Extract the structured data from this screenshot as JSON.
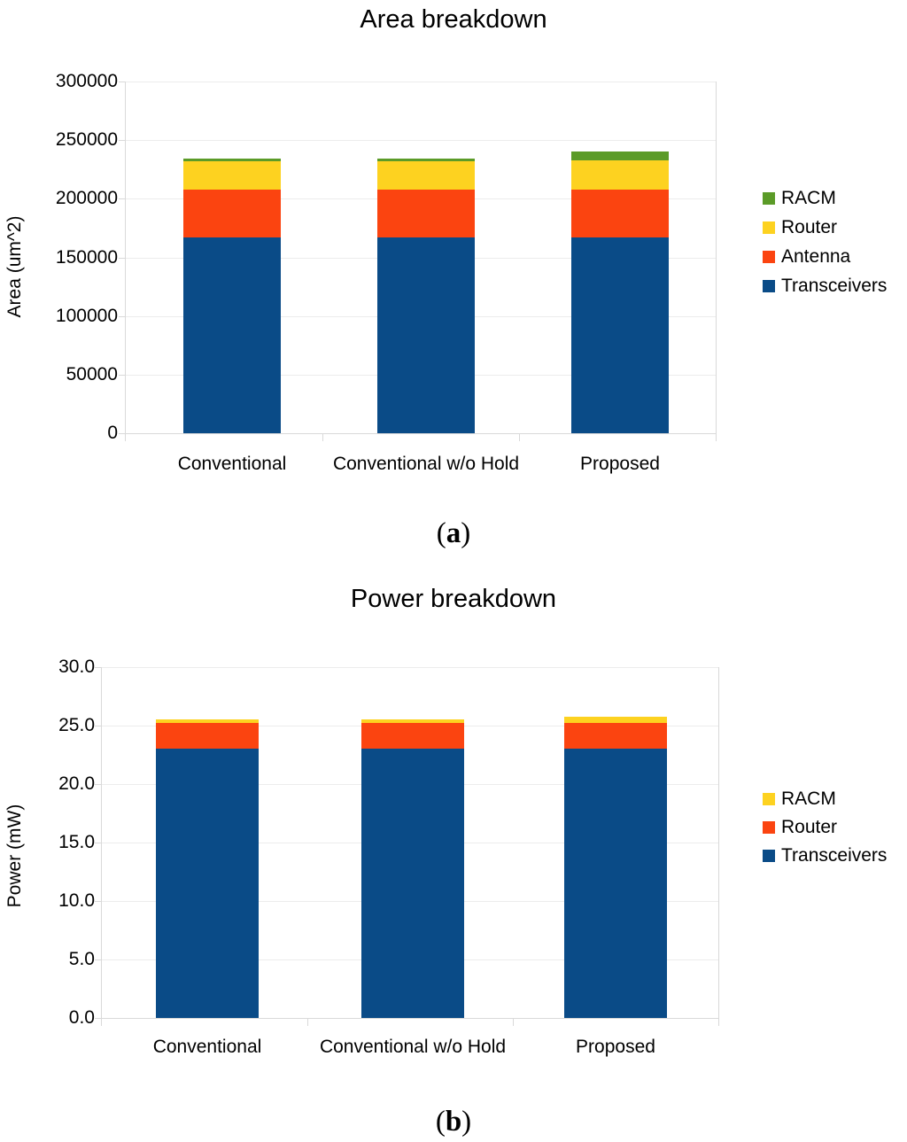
{
  "figure": {
    "captions": [
      {
        "open": "(",
        "letter": "a",
        "close": ")"
      },
      {
        "open": "(",
        "letter": "b",
        "close": ")"
      }
    ]
  },
  "chart_data": [
    {
      "type": "bar",
      "stacked": true,
      "title": "Area breakdown",
      "ylabel": "Area (um^2)",
      "xlabel": "",
      "categories": [
        "Conventional",
        "Conventional w/o Hold",
        "Proposed"
      ],
      "series": [
        {
          "name": "Transceivers",
          "color": "#0A4B87",
          "values": [
            167000,
            167000,
            167000
          ]
        },
        {
          "name": "Antenna",
          "color": "#FB4410",
          "values": [
            41000,
            41000,
            41000
          ]
        },
        {
          "name": "Router",
          "color": "#FDD220",
          "values": [
            24000,
            24000,
            25000
          ]
        },
        {
          "name": "RACM",
          "color": "#5B9B28",
          "values": [
            2500,
            2500,
            7000
          ]
        }
      ],
      "totals": [
        234500,
        234500,
        240500
      ],
      "ylim": [
        0,
        300000
      ],
      "ytick_step": 50000,
      "ytick_labels": [
        "300000",
        "250000",
        "200000",
        "150000",
        "100000",
        "50000",
        "0"
      ],
      "legend_order_top_to_bottom": [
        "RACM",
        "Router",
        "Antenna",
        "Transceivers"
      ],
      "legend_position": "right",
      "grid": "horizontal"
    },
    {
      "type": "bar",
      "stacked": true,
      "title": "Power breakdown",
      "ylabel": "Power (mW)",
      "xlabel": "",
      "categories": [
        "Conventional",
        "Conventional w/o Hold",
        "Proposed"
      ],
      "series": [
        {
          "name": "Transceivers",
          "color": "#0A4B87",
          "values": [
            23.0,
            23.0,
            23.0
          ]
        },
        {
          "name": "Router",
          "color": "#FB4410",
          "values": [
            2.2,
            2.2,
            2.2
          ]
        },
        {
          "name": "RACM",
          "color": "#FDD220",
          "values": [
            0.3,
            0.3,
            0.6
          ]
        }
      ],
      "totals": [
        25.5,
        25.5,
        25.8
      ],
      "ylim": [
        0,
        30
      ],
      "ytick_step": 5,
      "ytick_labels": [
        "30.0",
        "25.0",
        "20.0",
        "15.0",
        "10.0",
        "5.0",
        "0.0"
      ],
      "legend_order_top_to_bottom": [
        "RACM",
        "Router",
        "Transceivers"
      ],
      "legend_position": "right",
      "grid": "horizontal"
    }
  ]
}
